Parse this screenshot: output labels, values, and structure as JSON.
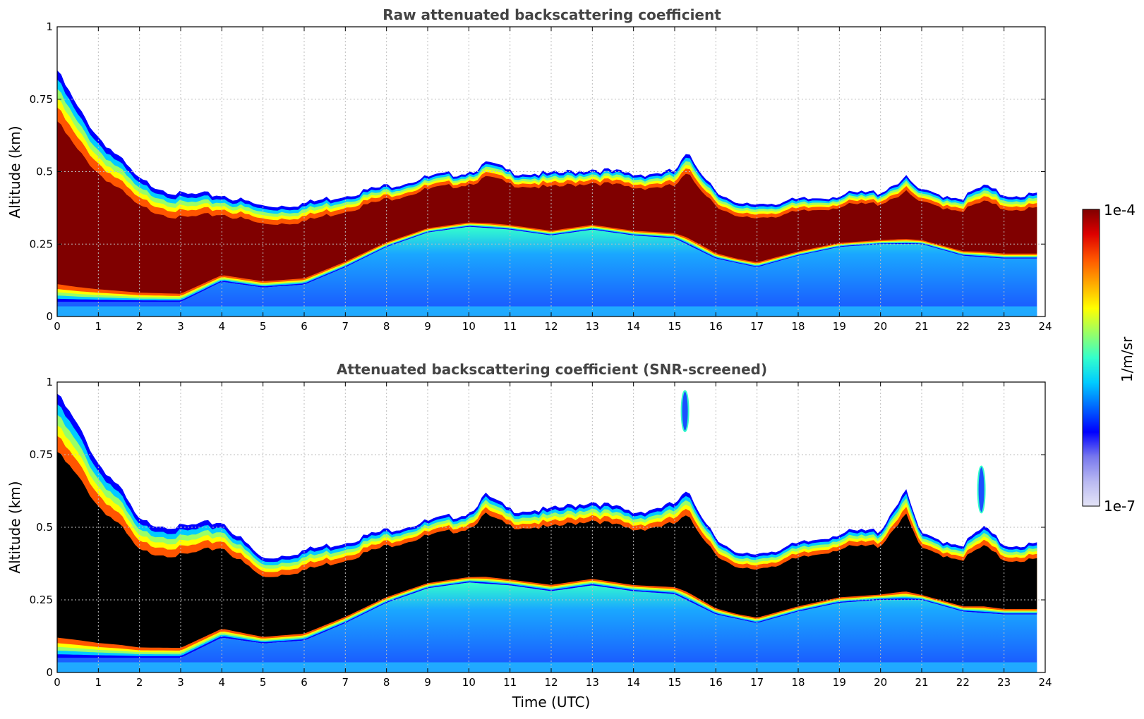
{
  "chart_data": [
    {
      "type": "heatmap",
      "title": "Raw attenuated backscattering coefficient",
      "xlabel": "",
      "ylabel": "Altitude (km)",
      "xlim": [
        0,
        24
      ],
      "ylim": [
        0,
        1
      ],
      "x_ticks": [
        "0",
        "1",
        "2",
        "3",
        "4",
        "5",
        "6",
        "7",
        "8",
        "9",
        "10",
        "11",
        "12",
        "13",
        "14",
        "15",
        "16",
        "17",
        "18",
        "19",
        "20",
        "21",
        "22",
        "23",
        "24"
      ],
      "y_ticks": [
        "0",
        "0.25",
        "0.5",
        "0.75",
        "1"
      ],
      "grid": true,
      "data_end_time": 23.8,
      "layer_top_km": [
        [
          0,
          0.85
        ],
        [
          0.5,
          0.72
        ],
        [
          1,
          0.62
        ],
        [
          1.5,
          0.55
        ],
        [
          2,
          0.47
        ],
        [
          3,
          0.42
        ],
        [
          4,
          0.42
        ],
        [
          5,
          0.38
        ],
        [
          6,
          0.39
        ],
        [
          7,
          0.42
        ],
        [
          8,
          0.45
        ],
        [
          9,
          0.48
        ],
        [
          10,
          0.5
        ],
        [
          10.5,
          0.53
        ],
        [
          11,
          0.5
        ],
        [
          12,
          0.49
        ],
        [
          13,
          0.51
        ],
        [
          14,
          0.49
        ],
        [
          15,
          0.5
        ],
        [
          15.3,
          0.56
        ],
        [
          16,
          0.44
        ],
        [
          16.5,
          0.38
        ],
        [
          17,
          0.39
        ],
        [
          18,
          0.4
        ],
        [
          19,
          0.42
        ],
        [
          20,
          0.43
        ],
        [
          20.6,
          0.48
        ],
        [
          21,
          0.43
        ],
        [
          22,
          0.41
        ],
        [
          22.5,
          0.45
        ],
        [
          23,
          0.42
        ],
        [
          23.8,
          0.42
        ]
      ],
      "layer_base_km": [
        [
          0,
          0.05
        ],
        [
          1,
          0.05
        ],
        [
          2,
          0.05
        ],
        [
          3,
          0.05
        ],
        [
          4,
          0.12
        ],
        [
          5,
          0.1
        ],
        [
          6,
          0.11
        ],
        [
          7,
          0.17
        ],
        [
          8,
          0.24
        ],
        [
          9,
          0.29
        ],
        [
          10,
          0.31
        ],
        [
          11,
          0.3
        ],
        [
          12,
          0.28
        ],
        [
          13,
          0.3
        ],
        [
          14,
          0.28
        ],
        [
          15,
          0.27
        ],
        [
          16,
          0.2
        ],
        [
          17,
          0.17
        ],
        [
          18,
          0.21
        ],
        [
          19,
          0.24
        ],
        [
          20,
          0.25
        ],
        [
          21,
          0.25
        ],
        [
          22,
          0.21
        ],
        [
          23,
          0.2
        ],
        [
          23.8,
          0.2
        ]
      ],
      "layer_core_value": "1e-4",
      "below_layer_value_range": [
        "1e-7",
        "3e-6"
      ]
    },
    {
      "type": "heatmap",
      "title": "Attenuated backscattering coefficient (SNR-screened)",
      "xlabel": "Time (UTC)",
      "ylabel": "Altitude (km)",
      "xlim": [
        0,
        24
      ],
      "ylim": [
        0,
        1
      ],
      "x_ticks": [
        "0",
        "1",
        "2",
        "3",
        "4",
        "5",
        "6",
        "7",
        "8",
        "9",
        "10",
        "11",
        "12",
        "13",
        "14",
        "15",
        "16",
        "17",
        "18",
        "19",
        "20",
        "21",
        "22",
        "23",
        "24"
      ],
      "y_ticks": [
        "0",
        "0.25",
        "0.5",
        "0.75",
        "1"
      ],
      "grid": true,
      "data_end_time": 23.8,
      "saturated_color": "#000000",
      "layer_top_km": [
        [
          0,
          0.96
        ],
        [
          0.5,
          0.85
        ],
        [
          1,
          0.72
        ],
        [
          1.5,
          0.64
        ],
        [
          2,
          0.52
        ],
        [
          3,
          0.5
        ],
        [
          4,
          0.52
        ],
        [
          5,
          0.39
        ],
        [
          6,
          0.42
        ],
        [
          7,
          0.45
        ],
        [
          8,
          0.49
        ],
        [
          9,
          0.52
        ],
        [
          10,
          0.55
        ],
        [
          10.4,
          0.61
        ],
        [
          11,
          0.56
        ],
        [
          12,
          0.56
        ],
        [
          13,
          0.59
        ],
        [
          14,
          0.55
        ],
        [
          15,
          0.58
        ],
        [
          15.3,
          0.62
        ],
        [
          16,
          0.47
        ],
        [
          16.5,
          0.4
        ],
        [
          17,
          0.41
        ],
        [
          18,
          0.44
        ],
        [
          19,
          0.48
        ],
        [
          20,
          0.49
        ],
        [
          20.6,
          0.63
        ],
        [
          21,
          0.47
        ],
        [
          22,
          0.44
        ],
        [
          22.5,
          0.5
        ],
        [
          23,
          0.44
        ],
        [
          23.8,
          0.44
        ]
      ],
      "layer_base_km": [
        [
          0,
          0.05
        ],
        [
          1,
          0.05
        ],
        [
          2,
          0.05
        ],
        [
          3,
          0.05
        ],
        [
          4,
          0.12
        ],
        [
          5,
          0.1
        ],
        [
          6,
          0.11
        ],
        [
          7,
          0.17
        ],
        [
          8,
          0.24
        ],
        [
          9,
          0.29
        ],
        [
          10,
          0.31
        ],
        [
          11,
          0.3
        ],
        [
          12,
          0.28
        ],
        [
          13,
          0.3
        ],
        [
          14,
          0.28
        ],
        [
          15,
          0.27
        ],
        [
          16,
          0.2
        ],
        [
          17,
          0.17
        ],
        [
          18,
          0.21
        ],
        [
          19,
          0.24
        ],
        [
          20,
          0.25
        ],
        [
          21,
          0.25
        ],
        [
          22,
          0.21
        ],
        [
          23,
          0.2
        ],
        [
          23.8,
          0.2
        ]
      ],
      "isolated_features": [
        {
          "time": 15.25,
          "altitude_km": [
            0.83,
            0.97
          ]
        },
        {
          "time": 22.45,
          "altitude_km": [
            0.55,
            0.71
          ]
        }
      ]
    }
  ],
  "colorbar": {
    "label": "1/m/sr",
    "max_label": "1e-4",
    "min_label": "1e-7",
    "scale": "log",
    "colormap": [
      "#e4e4f7",
      "#b9b9f2",
      "#7777ee",
      "#0000ff",
      "#0066ff",
      "#00ccff",
      "#33ffcc",
      "#99ff66",
      "#ffff00",
      "#ffaa00",
      "#ff5500",
      "#dd0000",
      "#800000"
    ]
  }
}
